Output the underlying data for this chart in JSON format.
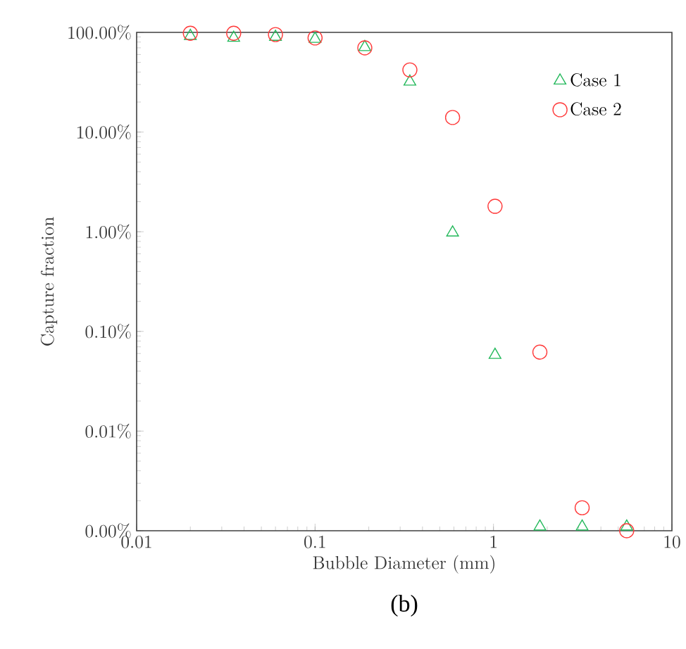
{
  "chart_data": {
    "type": "scatter",
    "xlabel": "Bubble Diameter (mm)",
    "ylabel": "Capture fraction",
    "annotations": [
      "(b)"
    ],
    "log": "xy",
    "xlim": [
      0.01,
      10
    ],
    "ylim": [
      0.001,
      100
    ],
    "xticks": [
      0.01,
      0.1,
      1,
      10
    ],
    "yticks": [
      {
        "value": 0.001,
        "label": "0.00%"
      },
      {
        "value": 0.01,
        "label": "0.01%"
      },
      {
        "value": 0.1,
        "label": "0.10%"
      },
      {
        "value": 1,
        "label": "1.00%"
      },
      {
        "value": 10,
        "label": "10.00%"
      },
      {
        "value": 100,
        "label": "100.00%"
      }
    ],
    "legend": "top right",
    "grid": false,
    "series": [
      {
        "name": "Case 1",
        "color": "#22b85a",
        "marker": "triangle",
        "x": [
          0.02,
          0.035,
          0.06,
          0.1,
          0.19,
          0.34,
          0.59,
          1.02,
          1.82,
          3.14,
          5.58
        ],
        "values": [
          92,
          88,
          90,
          86,
          71,
          32,
          0.98,
          0.058,
          0.0011,
          0.0011,
          0.0011
        ]
      },
      {
        "name": "Case 2",
        "color": "#ff3b3b",
        "marker": "circle",
        "x": [
          0.02,
          0.035,
          0.06,
          0.1,
          0.19,
          0.34,
          0.59,
          1.02,
          1.82,
          3.14,
          5.58
        ],
        "values": [
          98,
          98,
          95,
          88,
          70,
          42,
          14,
          1.8,
          0.062,
          0.0017,
          0.001
        ]
      }
    ]
  }
}
